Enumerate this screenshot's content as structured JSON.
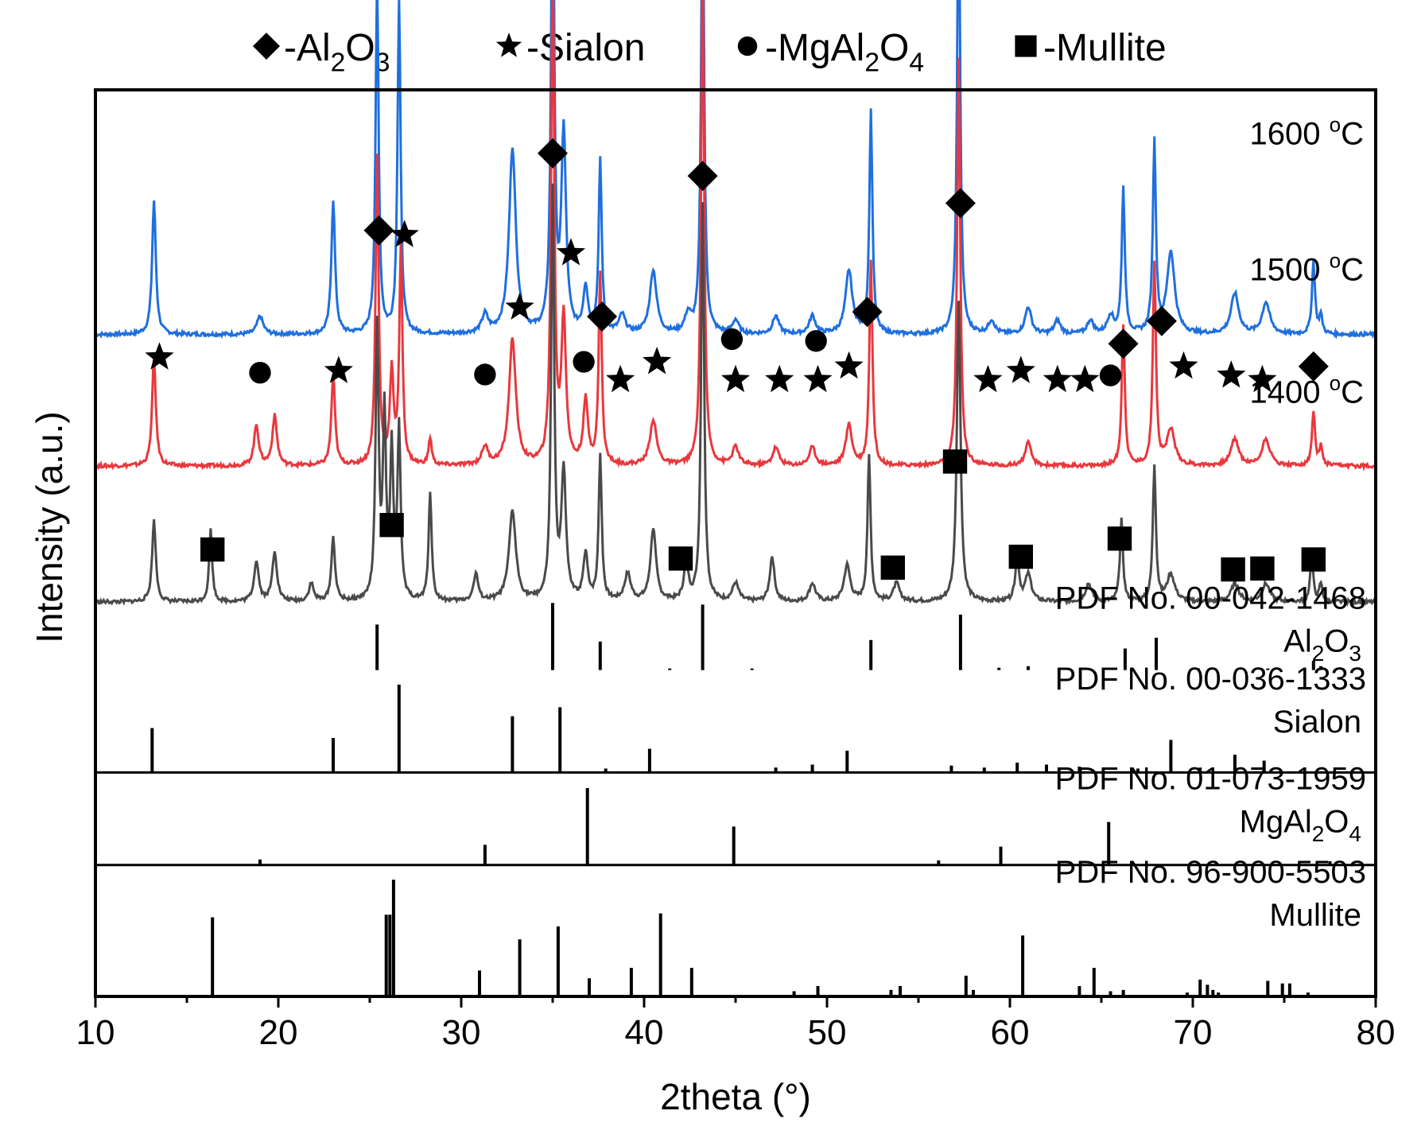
{
  "colors": {
    "series_1600": "#1f6fde",
    "series_1500": "#e8383d",
    "series_1400": "#4a4a4a",
    "axis": "#000000",
    "ref": "#000000"
  },
  "chart_data": {
    "type": "line",
    "title": "",
    "xlabel": "2theta (°)",
    "ylabel": "Intensity (a.u.)",
    "xlim": [
      10,
      80
    ],
    "xticks": [
      "10",
      "20",
      "30",
      "40",
      "50",
      "60",
      "70",
      "80"
    ],
    "legend": {
      "placement": "top",
      "entries": [
        {
          "marker": "diamond",
          "label": "-Al2O3",
          "parts": [
            "-Al",
            "2",
            "O",
            "3"
          ]
        },
        {
          "marker": "star",
          "label": "-Sialon",
          "parts": [
            "-Sialon"
          ]
        },
        {
          "marker": "circle",
          "label": "-MgAl2O4",
          "parts": [
            "-MgAl",
            "2",
            "O",
            "4"
          ]
        },
        {
          "marker": "square",
          "label": "-Mullite",
          "parts": [
            "-Mullite"
          ]
        }
      ]
    },
    "series": [
      {
        "name": "1600 °C",
        "label_main": "1600 ",
        "label_sup": "o",
        "label_tail": "C",
        "baseline": 0.73,
        "peaks": [
          [
            13.2,
            0.148,
            0.12
          ],
          [
            19.0,
            0.02,
            0.2
          ],
          [
            23.0,
            0.148,
            0.12
          ],
          [
            25.4,
            0.39,
            0.1
          ],
          [
            26.6,
            0.37,
            0.1
          ],
          [
            31.3,
            0.02,
            0.2
          ],
          [
            32.8,
            0.205,
            0.22
          ],
          [
            35.0,
            0.555,
            0.1
          ],
          [
            35.6,
            0.22,
            0.15
          ],
          [
            36.8,
            0.05,
            0.15
          ],
          [
            37.6,
            0.19,
            0.1
          ],
          [
            38.8,
            0.02,
            0.2
          ],
          [
            40.5,
            0.07,
            0.22
          ],
          [
            42.4,
            0.02,
            0.2
          ],
          [
            43.2,
            0.51,
            0.1
          ],
          [
            45.0,
            0.015,
            0.2
          ],
          [
            47.2,
            0.02,
            0.2
          ],
          [
            49.2,
            0.02,
            0.2
          ],
          [
            51.2,
            0.07,
            0.22
          ],
          [
            52.4,
            0.245,
            0.1
          ],
          [
            57.2,
            0.505,
            0.1
          ],
          [
            59.0,
            0.015,
            0.2
          ],
          [
            61.0,
            0.03,
            0.2
          ],
          [
            62.6,
            0.015,
            0.2
          ],
          [
            64.4,
            0.015,
            0.2
          ],
          [
            65.5,
            0.02,
            0.2
          ],
          [
            66.2,
            0.16,
            0.1
          ],
          [
            67.9,
            0.21,
            0.1
          ],
          [
            68.8,
            0.09,
            0.25
          ],
          [
            72.3,
            0.045,
            0.25
          ],
          [
            74.0,
            0.035,
            0.25
          ],
          [
            76.6,
            0.08,
            0.1
          ],
          [
            77.0,
            0.02,
            0.1
          ]
        ]
      },
      {
        "name": "1500 °C",
        "label_main": "1500 ",
        "label_sup": "o",
        "label_tail": "C",
        "baseline": 0.585,
        "peaks": [
          [
            13.2,
            0.12,
            0.12
          ],
          [
            18.8,
            0.045,
            0.15
          ],
          [
            19.8,
            0.055,
            0.15
          ],
          [
            23.0,
            0.1,
            0.12
          ],
          [
            25.4,
            0.34,
            0.1
          ],
          [
            26.2,
            0.1,
            0.12
          ],
          [
            26.7,
            0.24,
            0.1
          ],
          [
            28.3,
            0.03,
            0.1
          ],
          [
            31.3,
            0.02,
            0.2
          ],
          [
            32.8,
            0.14,
            0.22
          ],
          [
            35.0,
            0.55,
            0.1
          ],
          [
            35.6,
            0.16,
            0.15
          ],
          [
            36.8,
            0.07,
            0.15
          ],
          [
            37.6,
            0.21,
            0.1
          ],
          [
            40.5,
            0.05,
            0.22
          ],
          [
            43.2,
            0.55,
            0.1
          ],
          [
            45.0,
            0.02,
            0.2
          ],
          [
            47.2,
            0.02,
            0.2
          ],
          [
            49.2,
            0.02,
            0.2
          ],
          [
            51.2,
            0.045,
            0.2
          ],
          [
            52.4,
            0.225,
            0.1
          ],
          [
            57.2,
            0.45,
            0.1
          ],
          [
            61.0,
            0.025,
            0.2
          ],
          [
            66.2,
            0.155,
            0.1
          ],
          [
            67.9,
            0.225,
            0.1
          ],
          [
            68.8,
            0.04,
            0.25
          ],
          [
            72.3,
            0.03,
            0.25
          ],
          [
            74.0,
            0.03,
            0.25
          ],
          [
            76.6,
            0.06,
            0.1
          ],
          [
            77.0,
            0.02,
            0.1
          ]
        ]
      },
      {
        "name": "1400 °C",
        "label_main": "1400 ",
        "label_sup": "o",
        "label_tail": "C",
        "baseline": 0.435,
        "peaks": [
          [
            13.2,
            0.09,
            0.12
          ],
          [
            16.3,
            0.08,
            0.1
          ],
          [
            18.8,
            0.045,
            0.15
          ],
          [
            19.8,
            0.055,
            0.15
          ],
          [
            21.8,
            0.02,
            0.15
          ],
          [
            23.0,
            0.07,
            0.12
          ],
          [
            25.4,
            0.3,
            0.1
          ],
          [
            25.8,
            0.2,
            0.1
          ],
          [
            26.2,
            0.16,
            0.1
          ],
          [
            26.6,
            0.19,
            0.1
          ],
          [
            28.3,
            0.12,
            0.1
          ],
          [
            30.8,
            0.03,
            0.15
          ],
          [
            32.8,
            0.1,
            0.22
          ],
          [
            35.0,
            0.45,
            0.1
          ],
          [
            35.6,
            0.14,
            0.15
          ],
          [
            36.8,
            0.05,
            0.15
          ],
          [
            37.6,
            0.16,
            0.1
          ],
          [
            39.1,
            0.03,
            0.2
          ],
          [
            40.5,
            0.08,
            0.18
          ],
          [
            42.3,
            0.04,
            0.15
          ],
          [
            43.2,
            0.44,
            0.1
          ],
          [
            45.0,
            0.02,
            0.2
          ],
          [
            47.0,
            0.05,
            0.15
          ],
          [
            49.2,
            0.02,
            0.2
          ],
          [
            51.1,
            0.04,
            0.2
          ],
          [
            52.3,
            0.16,
            0.1
          ],
          [
            53.8,
            0.02,
            0.2
          ],
          [
            57.2,
            0.33,
            0.12
          ],
          [
            60.4,
            0.05,
            0.12
          ],
          [
            61.0,
            0.03,
            0.2
          ],
          [
            64.3,
            0.02,
            0.2
          ],
          [
            66.1,
            0.09,
            0.1
          ],
          [
            67.9,
            0.15,
            0.1
          ],
          [
            68.8,
            0.03,
            0.25
          ],
          [
            72.3,
            0.02,
            0.25
          ],
          [
            74.0,
            0.02,
            0.25
          ],
          [
            76.5,
            0.05,
            0.1
          ],
          [
            77.0,
            0.02,
            0.1
          ]
        ]
      }
    ],
    "markers": [
      {
        "type": "star",
        "points": [
          [
            13.5,
            0.705
          ],
          [
            23.3,
            0.69
          ],
          [
            26.9,
            0.84
          ],
          [
            33.2,
            0.76
          ],
          [
            36.0,
            0.82
          ],
          [
            38.7,
            0.68
          ],
          [
            40.7,
            0.7
          ],
          [
            45.0,
            0.68
          ],
          [
            47.4,
            0.68
          ],
          [
            49.5,
            0.68
          ],
          [
            51.2,
            0.695
          ],
          [
            58.8,
            0.68
          ],
          [
            60.6,
            0.69
          ],
          [
            62.6,
            0.68
          ],
          [
            64.1,
            0.68
          ],
          [
            69.5,
            0.695
          ],
          [
            72.1,
            0.685
          ],
          [
            73.8,
            0.68
          ]
        ]
      },
      {
        "type": "diamond",
        "points": [
          [
            25.5,
            0.845
          ],
          [
            35.0,
            0.93
          ],
          [
            37.7,
            0.75
          ],
          [
            43.2,
            0.905
          ],
          [
            57.3,
            0.875
          ],
          [
            52.2,
            0.755
          ],
          [
            66.2,
            0.72
          ],
          [
            68.3,
            0.745
          ],
          [
            76.6,
            0.695
          ]
        ]
      },
      {
        "type": "circle",
        "points": [
          [
            19.0,
            0.688
          ],
          [
            31.3,
            0.686
          ],
          [
            36.7,
            0.7
          ],
          [
            44.8,
            0.725
          ],
          [
            49.4,
            0.723
          ],
          [
            65.5,
            0.685
          ]
        ]
      },
      {
        "type": "square",
        "points": [
          [
            16.4,
            0.493
          ],
          [
            26.2,
            0.52
          ],
          [
            42.0,
            0.483
          ],
          [
            53.6,
            0.473
          ],
          [
            57.0,
            0.59
          ],
          [
            60.6,
            0.485
          ],
          [
            66.0,
            0.505
          ],
          [
            72.2,
            0.471
          ],
          [
            73.8,
            0.472
          ],
          [
            76.6,
            0.482
          ]
        ]
      }
    ],
    "references": [
      {
        "pdf": "PDF No. 00-042-1468",
        "phase_parts": [
          "Al",
          "2",
          "O",
          "3"
        ],
        "lines": [
          [
            25.4,
            0.59
          ],
          [
            35.0,
            0.87
          ],
          [
            37.6,
            0.37
          ],
          [
            41.4,
            0.02
          ],
          [
            43.2,
            0.85
          ],
          [
            45.9,
            0.02
          ],
          [
            52.4,
            0.39
          ],
          [
            57.3,
            0.72
          ],
          [
            59.4,
            0.03
          ],
          [
            61.0,
            0.05
          ],
          [
            66.3,
            0.28
          ],
          [
            68.0,
            0.42
          ],
          [
            70.3,
            0.02
          ],
          [
            74.1,
            0.02
          ],
          [
            76.6,
            0.12
          ],
          [
            77.0,
            0.05
          ]
        ]
      },
      {
        "pdf": "PDF No. 00-036-1333",
        "phase_parts": [
          "Sialon"
        ],
        "lines": [
          [
            13.1,
            0.45
          ],
          [
            23.0,
            0.35
          ],
          [
            26.6,
            0.89
          ],
          [
            32.8,
            0.57
          ],
          [
            35.4,
            0.66
          ],
          [
            37.9,
            0.04
          ],
          [
            40.3,
            0.24
          ],
          [
            47.2,
            0.05
          ],
          [
            49.2,
            0.08
          ],
          [
            51.1,
            0.22
          ],
          [
            56.8,
            0.07
          ],
          [
            58.6,
            0.05
          ],
          [
            60.4,
            0.1
          ],
          [
            62.0,
            0.08
          ],
          [
            63.8,
            0.06
          ],
          [
            67.0,
            0.04
          ],
          [
            68.8,
            0.33
          ],
          [
            70.4,
            0.05
          ],
          [
            72.3,
            0.18
          ],
          [
            73.9,
            0.12
          ]
        ]
      },
      {
        "pdf": "PDF No. 01-073-1959",
        "phase_parts": [
          "MgAl",
          "2",
          "O",
          "4"
        ],
        "lines": [
          [
            19.0,
            0.06
          ],
          [
            31.3,
            0.22
          ],
          [
            36.9,
            0.84
          ],
          [
            44.9,
            0.42
          ],
          [
            56.1,
            0.05
          ],
          [
            59.5,
            0.2
          ],
          [
            65.4,
            0.47
          ],
          [
            77.5,
            0.04
          ]
        ]
      },
      {
        "pdf": "PDF No. 96-900-5503",
        "phase_parts": [
          "Mullite"
        ],
        "lines": [
          [
            16.4,
            0.61
          ],
          [
            25.9,
            0.63
          ],
          [
            26.1,
            0.63
          ],
          [
            26.3,
            0.9
          ],
          [
            31.0,
            0.2
          ],
          [
            33.2,
            0.44
          ],
          [
            35.3,
            0.54
          ],
          [
            37.0,
            0.14
          ],
          [
            39.3,
            0.22
          ],
          [
            40.9,
            0.64
          ],
          [
            42.6,
            0.22
          ],
          [
            48.2,
            0.04
          ],
          [
            49.5,
            0.08
          ],
          [
            53.5,
            0.05
          ],
          [
            54.0,
            0.08
          ],
          [
            57.6,
            0.16
          ],
          [
            58.0,
            0.05
          ],
          [
            60.7,
            0.47
          ],
          [
            63.8,
            0.08
          ],
          [
            64.6,
            0.22
          ],
          [
            65.5,
            0.04
          ],
          [
            66.2,
            0.05
          ],
          [
            69.7,
            0.03
          ],
          [
            70.4,
            0.13
          ],
          [
            70.8,
            0.09
          ],
          [
            71.1,
            0.05
          ],
          [
            71.4,
            0.03
          ],
          [
            74.1,
            0.12
          ],
          [
            74.9,
            0.1
          ],
          [
            75.3,
            0.1
          ],
          [
            76.3,
            0.03
          ]
        ]
      }
    ]
  }
}
